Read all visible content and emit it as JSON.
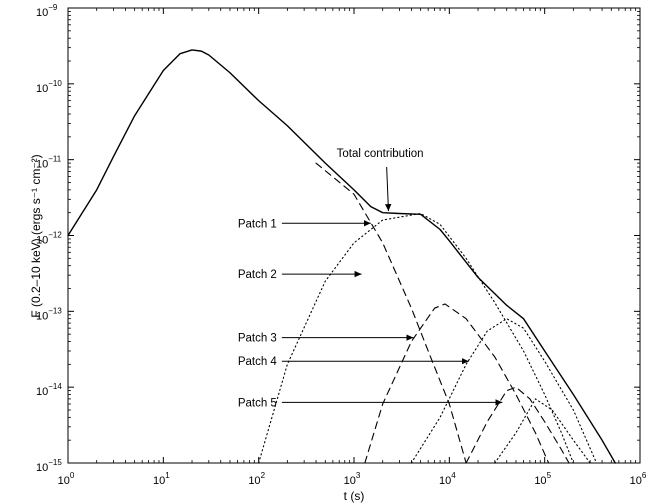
{
  "chart_data": {
    "type": "line",
    "xscale": "log",
    "yscale": "log",
    "xlim": [
      1,
      1000000
    ],
    "ylim": [
      1e-15,
      1e-09
    ],
    "xlabel": "t  (s)",
    "ylabel": "F (0.2–10 keV) (ergs s⁻¹ cm⁻²)",
    "x_tick_labels": [
      {
        "base": "10",
        "exp": "0",
        "value": 1
      },
      {
        "base": "10",
        "exp": "1",
        "value": 10
      },
      {
        "base": "10",
        "exp": "2",
        "value": 100
      },
      {
        "base": "10",
        "exp": "3",
        "value": 1000
      },
      {
        "base": "10",
        "exp": "4",
        "value": 10000
      },
      {
        "base": "10",
        "exp": "5",
        "value": 100000
      },
      {
        "base": "10",
        "exp": "6",
        "value": 1000000
      }
    ],
    "y_tick_labels": [
      {
        "base": "10",
        "exp": "−15",
        "value": 1e-15
      },
      {
        "base": "10",
        "exp": "−14",
        "value": 1e-14
      },
      {
        "base": "10",
        "exp": "−13",
        "value": 1e-13
      },
      {
        "base": "10",
        "exp": "−12",
        "value": 1e-12
      },
      {
        "base": "10",
        "exp": "−11",
        "value": 1e-11
      },
      {
        "base": "10",
        "exp": "−10",
        "value": 1e-10
      },
      {
        "base": "10",
        "exp": "−9",
        "value": 1e-09
      }
    ],
    "series": [
      {
        "style": "solid",
        "points": [
          [
            1,
            1e-12
          ],
          [
            2,
            4e-12
          ],
          [
            3,
            1.1e-11
          ],
          [
            5,
            3.8e-11
          ],
          [
            10,
            1.5e-10
          ],
          [
            15,
            2.5e-10
          ],
          [
            20,
            2.8e-10
          ],
          [
            25,
            2.7e-10
          ],
          [
            30,
            2.4e-10
          ],
          [
            50,
            1.4e-10
          ],
          [
            100,
            6e-11
          ],
          [
            200,
            2.8e-11
          ],
          [
            500,
            9e-12
          ],
          [
            1000,
            4e-12
          ],
          [
            1500,
            2.4e-12
          ],
          [
            2000,
            2e-12
          ],
          [
            3000,
            1.95e-12
          ],
          [
            5000,
            1.9e-12
          ],
          [
            8000,
            1.2e-12
          ],
          [
            10000,
            8.5e-13
          ],
          [
            20000,
            2.8e-13
          ],
          [
            40000,
            1.2e-13
          ],
          [
            60000,
            8e-14
          ],
          [
            100000,
            3e-14
          ],
          [
            200000,
            8e-15
          ],
          [
            400000,
            2e-15
          ],
          [
            550000,
            1e-15
          ]
        ]
      },
      {
        "style": "dashed",
        "points": [
          [
            400,
            9e-12
          ],
          [
            1000,
            3.5e-12
          ],
          [
            2000,
            8e-13
          ],
          [
            4000,
            1.1e-13
          ],
          [
            6000,
            3e-14
          ],
          [
            10000,
            6e-15
          ],
          [
            15000,
            1e-15
          ]
        ]
      },
      {
        "style": "dotted",
        "points": [
          [
            100,
            1e-15
          ],
          [
            200,
            2e-14
          ],
          [
            500,
            2.5e-13
          ],
          [
            1000,
            8e-13
          ],
          [
            2000,
            1.6e-12
          ],
          [
            5000,
            1.95e-12
          ],
          [
            8000,
            1.4e-12
          ],
          [
            15000,
            5e-13
          ],
          [
            30000,
            1.3e-13
          ],
          [
            60000,
            3e-14
          ],
          [
            100000,
            8e-15
          ],
          [
            150000,
            2.5e-15
          ],
          [
            200000,
            1e-15
          ]
        ]
      },
      {
        "style": "dashed",
        "points": [
          [
            1300,
            1e-15
          ],
          [
            2000,
            6e-15
          ],
          [
            4000,
            4e-14
          ],
          [
            7000,
            1.1e-13
          ],
          [
            9000,
            1.25e-13
          ],
          [
            15000,
            8e-14
          ],
          [
            30000,
            2.5e-14
          ],
          [
            50000,
            8e-15
          ],
          [
            80000,
            2.5e-15
          ],
          [
            110000,
            1e-15
          ]
        ]
      },
      {
        "style": "dotted",
        "points": [
          [
            4000,
            1e-15
          ],
          [
            8000,
            4e-15
          ],
          [
            15000,
            2e-14
          ],
          [
            25000,
            5.5e-14
          ],
          [
            40000,
            8e-14
          ],
          [
            60000,
            6e-14
          ],
          [
            100000,
            2.2e-14
          ],
          [
            200000,
            5e-15
          ],
          [
            350000,
            1e-15
          ]
        ]
      },
      {
        "style": "dashed",
        "points": [
          [
            15000,
            1e-15
          ],
          [
            25000,
            3.5e-15
          ],
          [
            40000,
            9e-15
          ],
          [
            50000,
            1e-14
          ],
          [
            70000,
            7e-15
          ],
          [
            100000,
            3.5e-15
          ],
          [
            150000,
            1.5e-15
          ],
          [
            180000,
            1e-15
          ]
        ]
      },
      {
        "style": "dotted",
        "points": [
          [
            30000,
            1e-15
          ],
          [
            50000,
            2.5e-15
          ],
          [
            80000,
            7e-15
          ],
          [
            120000,
            5e-15
          ],
          [
            200000,
            2e-15
          ],
          [
            300000,
            1e-15
          ]
        ]
      }
    ],
    "annotations": [
      {
        "text": "Total contribution",
        "arrow_from": [
          2200,
          8e-12
        ],
        "arrow_to": [
          2300,
          2.1e-12
        ]
      },
      {
        "text": "Patch 1",
        "arrow_from": [
          175,
          1.45e-12
        ],
        "arrow_to": [
          1500,
          1.45e-12
        ]
      },
      {
        "text": "Patch 2",
        "arrow_from": [
          175,
          3.1e-13
        ],
        "arrow_to": [
          1200,
          3.1e-13
        ]
      },
      {
        "text": "Patch 3",
        "arrow_from": [
          175,
          4.5e-14
        ],
        "arrow_to": [
          4200,
          4.5e-14
        ]
      },
      {
        "text": "Patch 4",
        "arrow_from": [
          175,
          2.2e-14
        ],
        "arrow_to": [
          16000,
          2.2e-14
        ]
      },
      {
        "text": "Patch 5",
        "arrow_from": [
          175,
          6.3e-15
        ],
        "arrow_to": [
          36000,
          6.3e-15
        ]
      }
    ],
    "grid": false,
    "legend": "none"
  }
}
